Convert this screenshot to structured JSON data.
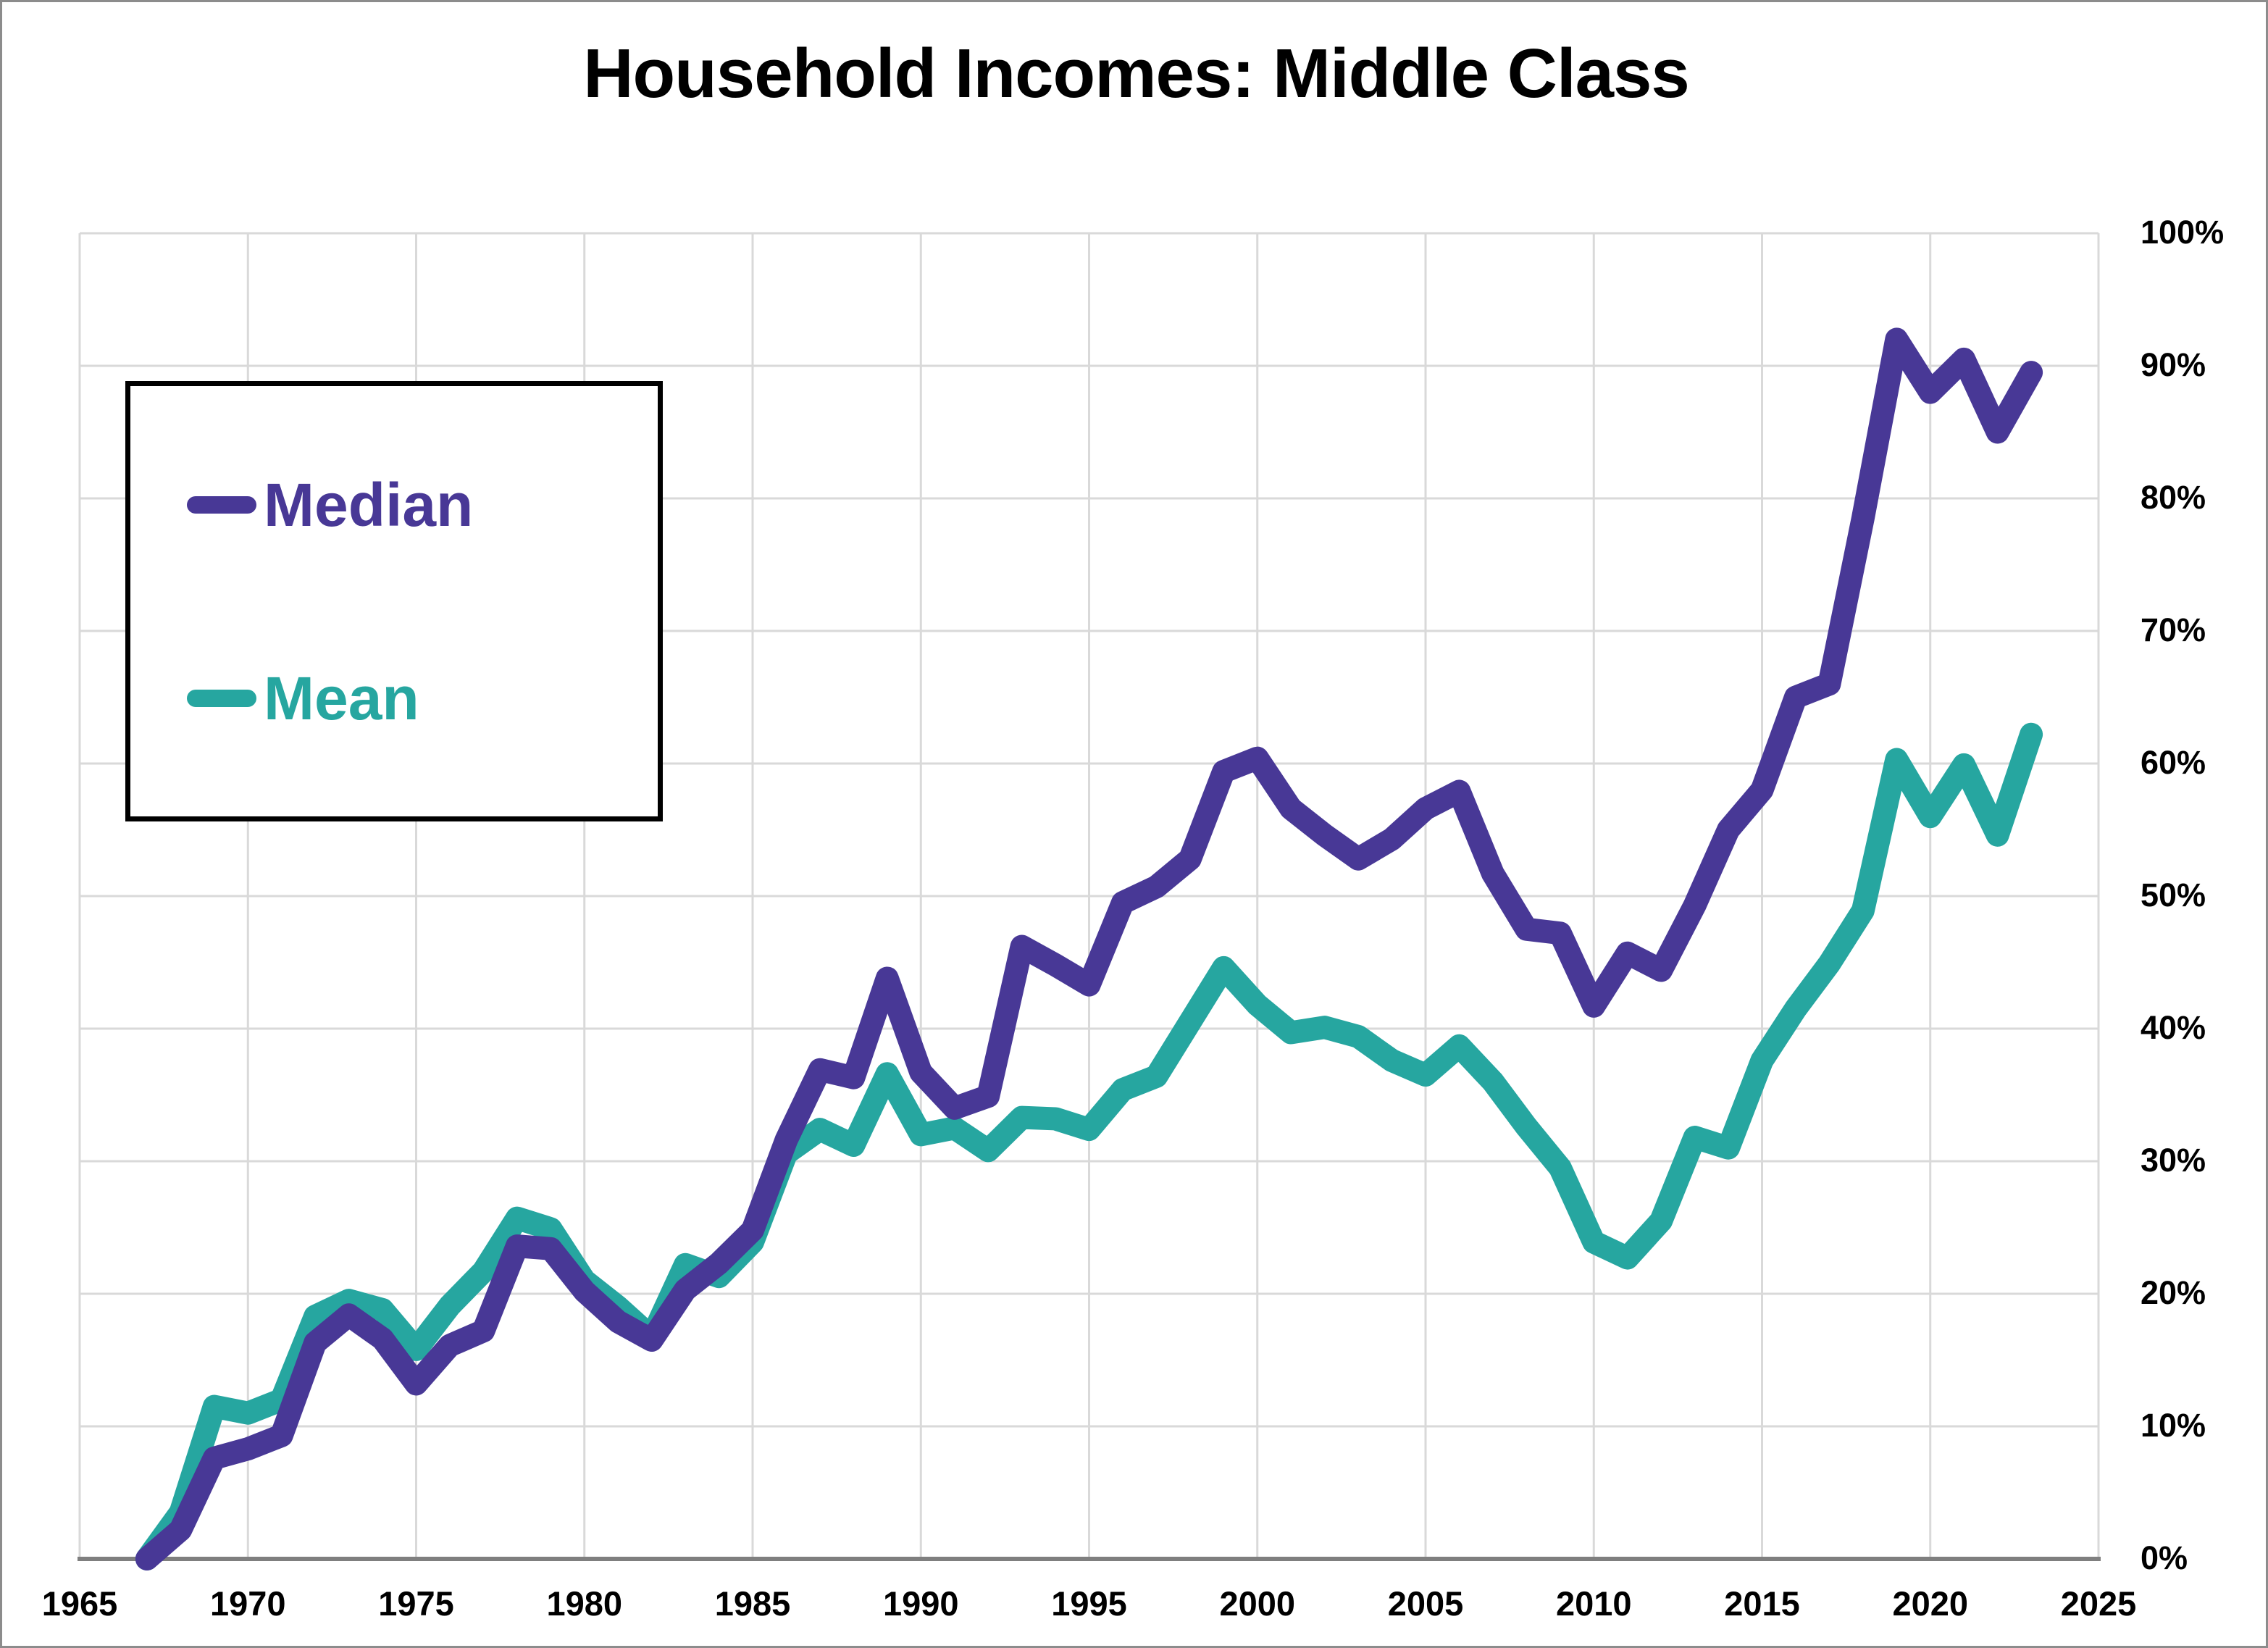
{
  "title": "Household Incomes: Middle Class",
  "legend": {
    "items": [
      {
        "label": "Median",
        "color": "#483896"
      },
      {
        "label": "Mean",
        "color": "#26A6A0"
      }
    ],
    "position": "top-left"
  },
  "colors": {
    "median_line": "#483896",
    "mean_line": "#26A6A0",
    "gridline": "#D9D9D9",
    "axis_line": "#7F7F7F",
    "frame_border": "#8C8C8C",
    "title_text": "#000000",
    "tick_text": "#000000",
    "background": "#FFFFFF"
  },
  "chart_data": {
    "type": "line",
    "title": "Household Incomes: Middle Class",
    "xlabel": "",
    "ylabel": "",
    "xlim": [
      1965,
      2025
    ],
    "ylim": [
      0,
      100
    ],
    "grid": true,
    "legend_position": "top-left",
    "x_ticks": {
      "values": [
        1965,
        1970,
        1975,
        1980,
        1985,
        1990,
        1995,
        2000,
        2005,
        2010,
        2015,
        2020,
        2025
      ],
      "labels": [
        "1965",
        "1970",
        "1975",
        "1980",
        "1985",
        "1990",
        "1995",
        "2000",
        "2005",
        "2010",
        "2015",
        "2020",
        "2025"
      ]
    },
    "y_ticks": {
      "values": [
        0,
        10,
        20,
        30,
        40,
        50,
        60,
        70,
        80,
        90,
        100
      ],
      "labels": [
        "0%",
        "10%",
        "20%",
        "30%",
        "40%",
        "50%",
        "60%",
        "70%",
        "80%",
        "90%",
        "100%"
      ]
    },
    "x": [
      1967,
      1968,
      1969,
      1970,
      1971,
      1972,
      1973,
      1974,
      1975,
      1976,
      1977,
      1978,
      1979,
      1980,
      1981,
      1982,
      1983,
      1984,
      1985,
      1986,
      1987,
      1988,
      1989,
      1990,
      1991,
      1992,
      1993,
      1994,
      1995,
      1996,
      1997,
      1998,
      1999,
      2000,
      2001,
      2002,
      2003,
      2004,
      2005,
      2006,
      2007,
      2008,
      2009,
      2010,
      2011,
      2012,
      2013,
      2014,
      2015,
      2016,
      2017,
      2018,
      2019,
      2020,
      2021,
      2022,
      2023
    ],
    "series": [
      {
        "name": "Median",
        "color": "#483896",
        "values": [
          0,
          2.2,
          7.6,
          8.3,
          9.3,
          16.3,
          18.4,
          16.6,
          13.2,
          16.1,
          17.2,
          23.6,
          23.4,
          20.2,
          17.9,
          16.5,
          20.3,
          22.3,
          24.8,
          31.6,
          36.9,
          36.3,
          43.8,
          36.7,
          34.0,
          34.9,
          46.2,
          44.8,
          43.3,
          49.5,
          50.7,
          52.8,
          59.4,
          60.4,
          56.6,
          54.6,
          52.8,
          54.3,
          56.6,
          57.9,
          51.7,
          47.5,
          47.2,
          41.7,
          45.7,
          44.4,
          49.3,
          55.0,
          58.0,
          65.0,
          66.0,
          78.5,
          92.0,
          88.0,
          90.5,
          85.0,
          89.5
        ]
      },
      {
        "name": "Mean",
        "color": "#26A6A0",
        "values": [
          0,
          3.5,
          11.5,
          11.0,
          12.0,
          18.3,
          19.5,
          18.8,
          15.8,
          19.1,
          21.7,
          25.7,
          24.9,
          21.0,
          19.0,
          16.7,
          22.2,
          21.3,
          23.9,
          30.6,
          32.4,
          31.2,
          36.6,
          32.0,
          32.5,
          30.8,
          33.3,
          33.2,
          32.4,
          35.4,
          36.4,
          40.5,
          44.6,
          41.8,
          39.7,
          40.1,
          39.4,
          37.6,
          36.5,
          38.7,
          36.0,
          32.6,
          29.5,
          23.9,
          22.7,
          25.5,
          31.8,
          31.0,
          37.6,
          41.5,
          44.9,
          48.9,
          60.3,
          56.0,
          59.9,
          54.6,
          62.2
        ]
      }
    ]
  }
}
